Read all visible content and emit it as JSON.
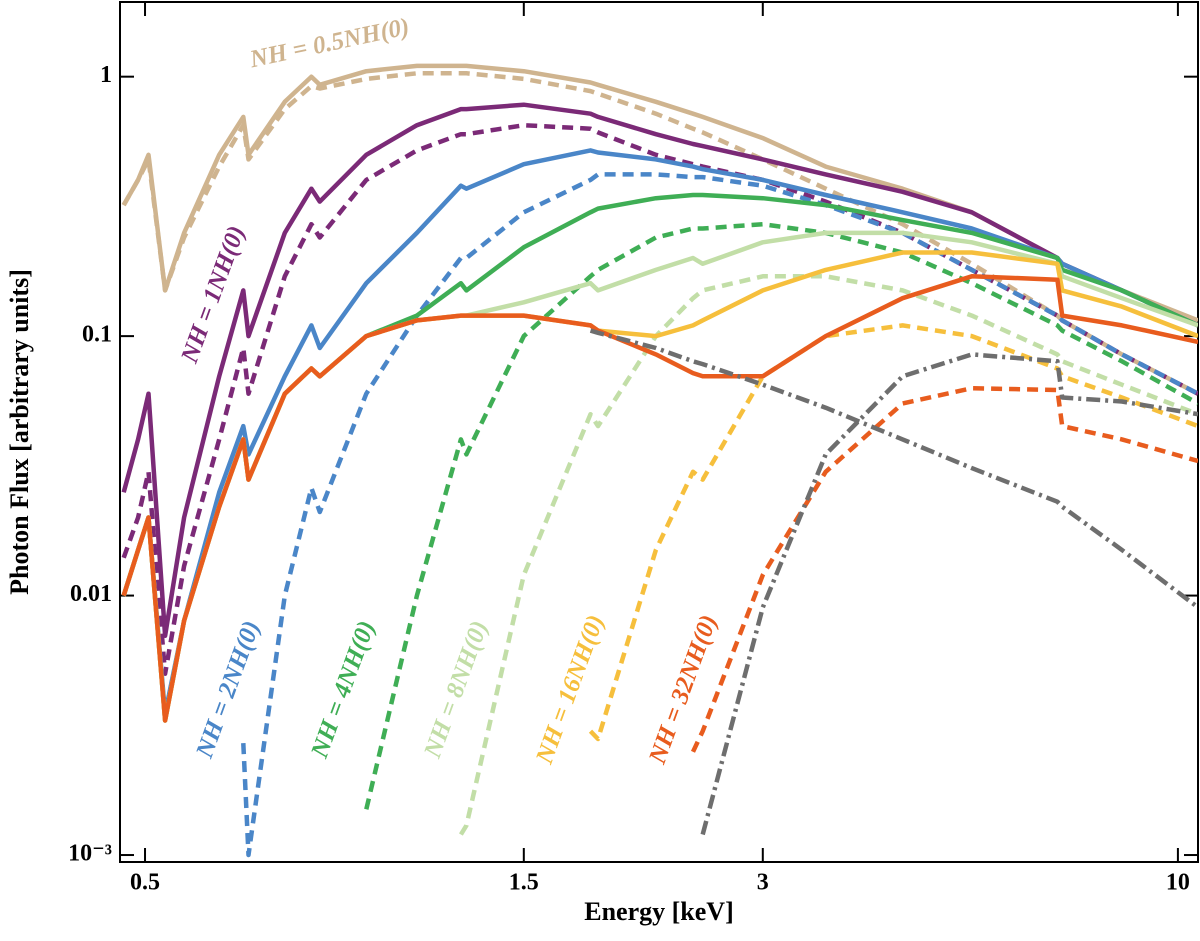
{
  "chart_data": {
    "type": "line",
    "xlabel": "Energy [keV]",
    "ylabel": "Photon Flux [arbitrary units]",
    "xscale": "log",
    "yscale": "log",
    "xlim": [
      0.465,
      10.6
    ],
    "ylim": [
      0.00094,
      1.94
    ],
    "xticks": [
      0.5,
      1.5,
      3,
      10
    ],
    "yticks": [
      1,
      0.1,
      0.01,
      {
        "value": 0.001,
        "label": "10⁻³"
      }
    ],
    "x": [
      0.47,
      0.49,
      0.505,
      0.53,
      0.56,
      0.62,
      0.665,
      0.675,
      0.75,
      0.81,
      0.83,
      0.95,
      1.1,
      1.25,
      1.27,
      1.5,
      1.82,
      1.86,
      2.2,
      2.45,
      2.52,
      3,
      3.6,
      4.5,
      5.5,
      7.05,
      7.15,
      8.5,
      10.6
    ],
    "series": [
      {
        "name": "NH = 0.5NH(0)",
        "color": "#cfb48f",
        "dash": "solid",
        "values": [
          0.32,
          0.4,
          0.5,
          0.15,
          0.25,
          0.5,
          0.7,
          0.5,
          0.8,
          1.0,
          0.93,
          1.05,
          1.1,
          1.1,
          1.1,
          1.05,
          0.95,
          0.93,
          0.8,
          0.72,
          0.7,
          0.58,
          0.45,
          0.37,
          0.3,
          0.2,
          0.19,
          0.15,
          0.115
        ]
      },
      {
        "color": "#cfb48f",
        "dash": "dashed",
        "values": [
          0.32,
          0.4,
          0.48,
          0.15,
          0.24,
          0.45,
          0.65,
          0.48,
          0.75,
          0.92,
          0.9,
          0.98,
          1.03,
          1.03,
          1.03,
          0.98,
          0.88,
          0.86,
          0.72,
          0.63,
          0.61,
          0.48,
          0.37,
          0.27,
          0.19,
          0.12,
          0.115,
          0.085,
          0.06
        ]
      },
      {
        "name": "NH = 1NH(0)",
        "color": "#7b2a77",
        "dash": "solid",
        "values": [
          0.025,
          0.04,
          0.06,
          0.007,
          0.02,
          0.07,
          0.15,
          0.1,
          0.25,
          0.37,
          0.33,
          0.5,
          0.65,
          0.75,
          0.75,
          0.78,
          0.72,
          0.7,
          0.6,
          0.55,
          0.54,
          0.48,
          0.42,
          0.36,
          0.3,
          0.2,
          0.19,
          0.15,
          0.11
        ]
      },
      {
        "color": "#7b2a77",
        "dash": "dashed",
        "values": [
          0.014,
          0.02,
          0.03,
          0.005,
          0.013,
          0.04,
          0.09,
          0.06,
          0.17,
          0.27,
          0.24,
          0.4,
          0.52,
          0.6,
          0.6,
          0.65,
          0.63,
          0.61,
          0.5,
          0.46,
          0.45,
          0.4,
          0.33,
          0.25,
          0.18,
          0.12,
          0.115,
          0.085,
          0.06
        ]
      },
      {
        "name": "NH = 2NH(0)",
        "color": "#4a86c8",
        "dash": "solid",
        "values": [
          0.01,
          0.015,
          0.02,
          0.0035,
          0.008,
          0.025,
          0.045,
          0.035,
          0.07,
          0.11,
          0.09,
          0.16,
          0.25,
          0.38,
          0.37,
          0.46,
          0.52,
          0.51,
          0.48,
          0.45,
          0.44,
          0.4,
          0.35,
          0.3,
          0.26,
          0.2,
          0.19,
          0.15,
          0.11
        ]
      },
      {
        "color": "#4a86c8",
        "dash": "dashed",
        "values": [
          null,
          null,
          null,
          null,
          null,
          null,
          0.0027,
          0.001,
          0.01,
          0.026,
          0.021,
          0.06,
          0.12,
          0.2,
          0.2,
          0.3,
          0.4,
          0.42,
          0.42,
          0.41,
          0.41,
          0.38,
          0.32,
          0.25,
          0.18,
          0.12,
          0.115,
          0.085,
          0.06
        ]
      },
      {
        "name": "NH = 4NH(0)",
        "color": "#3fae55",
        "dash": "solid",
        "values": [
          0.01,
          0.015,
          0.02,
          0.0033,
          0.008,
          0.022,
          0.04,
          0.028,
          0.06,
          0.075,
          0.07,
          0.1,
          0.12,
          0.16,
          0.15,
          0.22,
          0.3,
          0.31,
          0.34,
          0.35,
          0.35,
          0.34,
          0.32,
          0.28,
          0.25,
          0.2,
          0.18,
          0.15,
          0.11
        ]
      },
      {
        "color": "#3fae55",
        "dash": "dashed",
        "values": [
          null,
          null,
          null,
          null,
          null,
          null,
          null,
          null,
          null,
          null,
          null,
          0.0015,
          0.01,
          0.04,
          0.035,
          0.1,
          0.17,
          0.18,
          0.24,
          0.26,
          0.26,
          0.27,
          0.25,
          0.21,
          0.16,
          0.11,
          0.105,
          0.08,
          0.055
        ]
      },
      {
        "name": "NH = 8NH(0)",
        "color": "#c2dea7",
        "dash": "solid",
        "values": [
          0.01,
          0.015,
          0.02,
          0.0033,
          0.008,
          0.022,
          0.04,
          0.028,
          0.06,
          0.075,
          0.07,
          0.1,
          0.115,
          0.12,
          0.12,
          0.135,
          0.16,
          0.15,
          0.18,
          0.2,
          0.19,
          0.23,
          0.25,
          0.25,
          0.23,
          0.19,
          0.17,
          0.14,
          0.11
        ]
      },
      {
        "color": "#c2dea7",
        "dash": "dashed",
        "values": [
          null,
          null,
          null,
          null,
          null,
          null,
          null,
          null,
          null,
          null,
          null,
          null,
          null,
          0.0012,
          0.0013,
          0.012,
          0.05,
          0.045,
          0.1,
          0.14,
          0.15,
          0.17,
          0.17,
          0.15,
          0.12,
          0.085,
          0.08,
          0.065,
          0.05
        ]
      },
      {
        "name": "NH = 16NH(0)",
        "color": "#f6bf3c",
        "dash": "solid",
        "values": [
          0.01,
          0.015,
          0.02,
          0.0033,
          0.008,
          0.022,
          0.04,
          0.028,
          0.06,
          0.075,
          0.07,
          0.1,
          0.115,
          0.12,
          0.12,
          0.12,
          0.11,
          0.105,
          0.1,
          0.11,
          0.115,
          0.15,
          0.18,
          0.21,
          0.21,
          0.19,
          0.15,
          0.13,
          0.1
        ]
      },
      {
        "color": "#f6bf3c",
        "dash": "dashed",
        "values": [
          null,
          null,
          null,
          null,
          null,
          null,
          null,
          null,
          null,
          null,
          null,
          null,
          null,
          null,
          null,
          null,
          0.003,
          0.0028,
          0.015,
          0.03,
          0.028,
          0.07,
          0.1,
          0.11,
          0.1,
          0.075,
          0.07,
          0.058,
          0.045
        ]
      },
      {
        "name": "NH = 32NH(0)",
        "color": "#e85c1e",
        "dash": "solid",
        "values": [
          0.01,
          0.015,
          0.02,
          0.0033,
          0.008,
          0.022,
          0.04,
          0.028,
          0.06,
          0.075,
          0.07,
          0.1,
          0.115,
          0.12,
          0.12,
          0.12,
          0.11,
          0.105,
          0.085,
          0.072,
          0.07,
          0.07,
          0.1,
          0.14,
          0.17,
          0.165,
          0.12,
          0.11,
          0.095
        ]
      },
      {
        "color": "#e85c1e",
        "dash": "dashed",
        "values": [
          null,
          null,
          null,
          null,
          null,
          null,
          null,
          null,
          null,
          null,
          null,
          null,
          null,
          null,
          null,
          null,
          null,
          null,
          null,
          0.0025,
          0.003,
          0.012,
          0.03,
          0.055,
          0.063,
          0.062,
          0.045,
          0.04,
          0.033
        ]
      },
      {
        "color": "#6e6e6e",
        "dash": "dashdot",
        "values": [
          null,
          null,
          null,
          null,
          null,
          null,
          null,
          null,
          null,
          null,
          null,
          null,
          null,
          null,
          null,
          null,
          0.105,
          0.103,
          0.09,
          0.08,
          0.078,
          0.065,
          0.053,
          0.04,
          0.031,
          0.023,
          0.022,
          0.015,
          0.009
        ]
      },
      {
        "color": "#6e6e6e",
        "dash": "dashdot",
        "values": [
          null,
          null,
          null,
          null,
          null,
          null,
          null,
          null,
          null,
          null,
          null,
          null,
          null,
          null,
          null,
          null,
          null,
          null,
          null,
          null,
          0.0012,
          0.009,
          0.035,
          0.07,
          0.085,
          0.08,
          0.058,
          0.056,
          0.05
        ]
      }
    ]
  }
}
